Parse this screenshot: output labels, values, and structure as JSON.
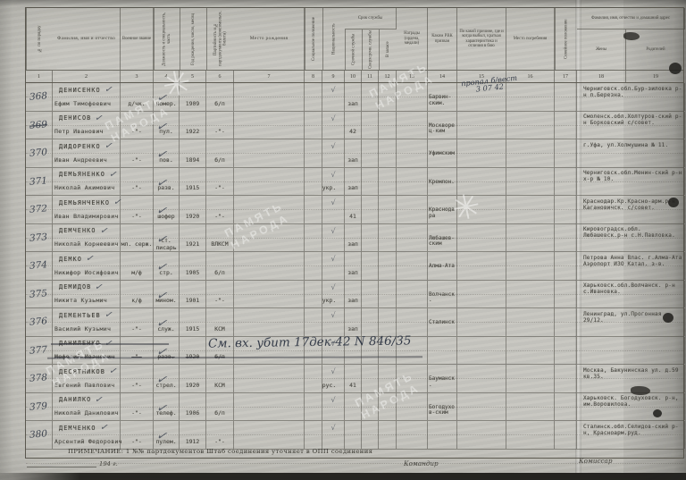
{
  "marks": {
    "check": "✓",
    "small_check": "√",
    "star": "✳"
  },
  "watermark": {
    "text": "ПАМЯТЬ\nНАРОДА"
  },
  "header": {
    "c1": "№ по порядку",
    "c2": "Фамилия, имя и отчество",
    "c3": "Военное звание",
    "c4": "Должность и специальность, часть",
    "c5": "Год рождения, число, месяц",
    "c6": "Партийность и № партдокумента (комсомольск. билета)",
    "c7": "Место рождения",
    "c8": "Социальное положение",
    "c9": "Национальность",
    "service_group": "Срок службы",
    "c10": "Срочной службы",
    "c11": "Сверхсрочн. службы",
    "c12": "В запасе",
    "c13": "Награды (ордена, медали)",
    "c14": "Каким РВК призван",
    "c15": "По какой причине, где и когда выбыл, краткая характеристика и отличия в бою",
    "c16": "Место погребения",
    "c17": "Семейное положение",
    "address_group": "Фамилия, имя, отчество и домашний адрес",
    "c18": "Жены",
    "c19": "Родителей",
    "nums": [
      "1",
      "2",
      "3",
      "4",
      "5",
      "6",
      "7",
      "8",
      "9",
      "10",
      "11",
      "12",
      "13",
      "14",
      "15",
      "16",
      "17",
      "18",
      "19"
    ]
  },
  "rows": [
    {
      "n": "368",
      "surname": "ДЕНИСЕНКО",
      "name": "Ефим Тимофеевич",
      "rank": "д/чк.",
      "duty": "номер.",
      "year": "1909",
      "party": "б/п",
      "nat": "",
      "t10": "зап",
      "rvk": "Барвин-ским.",
      "note15": "пропал б/вест 3 07 42",
      "addr": "Черниговск.обл.Бур-зиловка р-н п.Березна."
    },
    {
      "n": "369",
      "nstrike": true,
      "surname": "ДЕНИСОВ",
      "name": "Петр Иванович",
      "rank": "-\"-",
      "duty": "пул.",
      "year": "1922",
      "party": "-\"-",
      "nat": "",
      "t10": "42",
      "rvk": "Москворец-ким",
      "addr": "Смоленск.обл.Холтуров-ский р-н Борковский с/совет."
    },
    {
      "n": "370",
      "surname": "ДИДОРЕНКО",
      "name": "Иван Андреевич",
      "rank": "-\"-",
      "duty": "пов.",
      "year": "1894",
      "party": "б/п",
      "nat": "",
      "t10": "зап",
      "rvk": "Уфимским",
      "addr": "г.Уфа, ул.Холмушина № 11."
    },
    {
      "n": "371",
      "surname": "ДЕМЬЯНЕНКО",
      "name": "Николай Акимович",
      "rank": "-\"-",
      "duty": "разв.",
      "year": "1915",
      "party": "-\"-",
      "nat": "укр.",
      "t10": "зап",
      "rvk": "Кремлон.",
      "addr": "Черниговск.обл.Менин-ский р-н х-р № 10."
    },
    {
      "n": "372",
      "surname": "ДЕМЬЯНЧЕНКО",
      "name": "Иван Владимирович",
      "rank": "-\"-",
      "duty": "шофер",
      "year": "1920",
      "party": "-\"-",
      "nat": "",
      "t10": "41",
      "rvk": "Краснодара",
      "addr": "Краснодар.Кр.Красно-арм.р-н Кагановичск. с/совет."
    },
    {
      "n": "373",
      "surname": "ДЕМЧЕНКО",
      "name": "Николай Корнеевич",
      "rank": "мл. серж.",
      "duty": "ст. писарь",
      "year": "1921",
      "party": "ВЛКСМ",
      "nat": "",
      "t10": "зап",
      "rvk": "Любашев-ским",
      "addr": "Кировоградск.обл. Любашевск.р-н с.Н.Павловка."
    },
    {
      "n": "374",
      "surname": "ДЕМКО",
      "name": "Никифор Иосифович",
      "rank": "м/ф",
      "duty": "стр.",
      "year": "1905",
      "party": "б/п",
      "nat": "",
      "t10": "зап",
      "rvk": "Алма-Ата",
      "addr": "Петрова Анна Влас. г.Алма-Ата Аэропорт ИЗО Катал. з-в."
    },
    {
      "n": "375",
      "surname": "ДЕМИДОВ",
      "name": "Никита Кузьмич",
      "rank": "к/ф",
      "duty": "мином.",
      "year": "1901",
      "party": "-\"-",
      "nat": "укр.",
      "t10": "зап",
      "rvk": "Волчанск.",
      "addr": "Харьковск.обл.Волчанск. р-н с.Ивановка."
    },
    {
      "n": "376",
      "surname": "ДЕМЕНТЬЕВ",
      "name": "Василий Кузьмич",
      "rank": "-\"-",
      "duty": "служ.",
      "year": "1915",
      "party": "КСМ",
      "nat": "",
      "t10": "зап",
      "rvk": "Сталинск",
      "addr": "Ленинград, ул.Прогонная 29/12."
    },
    {
      "n": "377",
      "struck": true,
      "surname": "ДАНИЛЕНКО",
      "name": "Мефодий Иванович",
      "rank": "-\"-",
      "duty": "разв.",
      "year": "1920",
      "party": "б/п",
      "nat": "",
      "t10": "",
      "rvk": "",
      "addr": "",
      "note_span": "См. вх. убит 17дек-42 N 846/35"
    },
    {
      "n": "378",
      "surname": "ДЕСЯТНИКОВ",
      "name": "Евгений Павлович",
      "rank": "-\"-",
      "duty": "стрел.",
      "year": "1920",
      "party": "КСМ",
      "nat": "рус.",
      "t10": "41",
      "rvk": "Бауманск.",
      "addr": "Москва, Бакунинская ул. д.59 кв.35."
    },
    {
      "n": "379",
      "surname": "ДАНИЛКО",
      "name": "Николай Данилович",
      "rank": "-\"-",
      "duty": "телеф.",
      "year": "1906",
      "party": "б/п",
      "nat": "",
      "t10": "",
      "rvk": "Богодухов-ским",
      "addr": "Харьковск. Богодуховск. р-н, им.Ворошилова."
    },
    {
      "n": "380",
      "surname": "ДЕМЧЕНКО",
      "name": "Арсентий Федорович",
      "rank": "-\"-",
      "duty": "пулем.",
      "year": "1912",
      "party": "-\"-",
      "nat": "",
      "t10": "",
      "rvk": "",
      "addr": "Сталинск.обл.Селидов-ский р-н, Красноарм.руд."
    }
  ],
  "footer": {
    "note": "ПРИМЕЧАНИЕ: 1 №№ партдокументов Штаб соединения уточняет в ОПП соединения",
    "date_year": "194   г.",
    "commander": "Командир",
    "commissar": "Комиссар"
  }
}
